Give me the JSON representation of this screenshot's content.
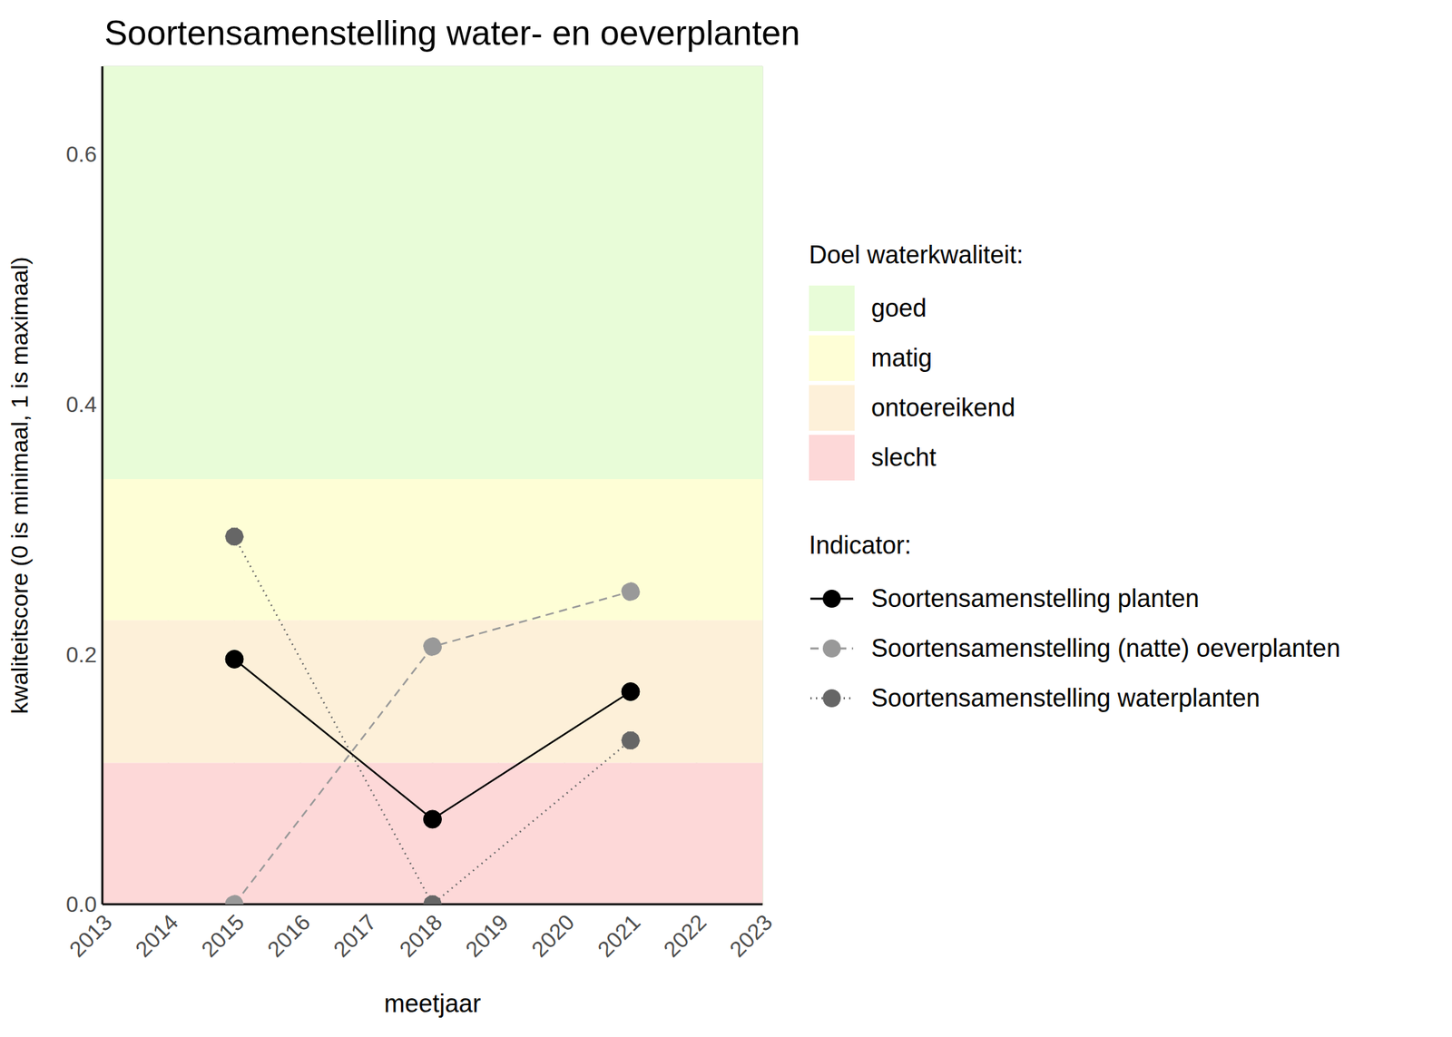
{
  "chart_data": {
    "type": "line",
    "title": "Soortensamenstelling water- en oeverplanten",
    "x_label": "meetjaar",
    "y_label": "kwaliteitscore (0 is minimaal, 1 is maximaal)",
    "x": [
      2015,
      2018,
      2021
    ],
    "xlim": [
      2013,
      2023
    ],
    "xticks": [
      2013,
      2014,
      2015,
      2016,
      2017,
      2018,
      2019,
      2020,
      2021,
      2022,
      2023
    ],
    "ylim": [
      0,
      0.67
    ],
    "yticks": [
      {
        "value": 0,
        "label": "0.0"
      },
      {
        "value": 0.2,
        "label": "0.2"
      },
      {
        "value": 0.4,
        "label": "0.4"
      },
      {
        "value": 0.6,
        "label": "0.6"
      }
    ],
    "grid": true,
    "legend": "right",
    "bands_title": "Doel waterkwaliteit:",
    "bands": [
      {
        "name": "goed",
        "color": "#e8fcd8",
        "from": 0.34,
        "to": 0.67
      },
      {
        "name": "matig",
        "color": "#fefed6",
        "from": 0.227,
        "to": 0.34
      },
      {
        "name": "ontoereikend",
        "color": "#fdf0d9",
        "from": 0.113,
        "to": 0.227
      },
      {
        "name": "slecht",
        "color": "#fdd8d8",
        "from": 0,
        "to": 0.113
      }
    ],
    "series_title": "Indicator:",
    "series": [
      {
        "name": "Soortensamenstelling planten",
        "color": "#000000",
        "line_style": "solid",
        "marker": "circle",
        "values": [
          0.196,
          0.068,
          0.17
        ]
      },
      {
        "name": "Soortensamenstelling (natte) oeverplanten",
        "color": "#999999",
        "line_style": "dashed",
        "marker": "circle",
        "values": [
          0,
          0.206,
          0.25
        ]
      },
      {
        "name": "Soortensamenstelling waterplanten",
        "color": "#666666",
        "line_style": "dotted",
        "marker": "circle",
        "values": [
          0.294,
          0,
          0.131
        ]
      }
    ]
  }
}
